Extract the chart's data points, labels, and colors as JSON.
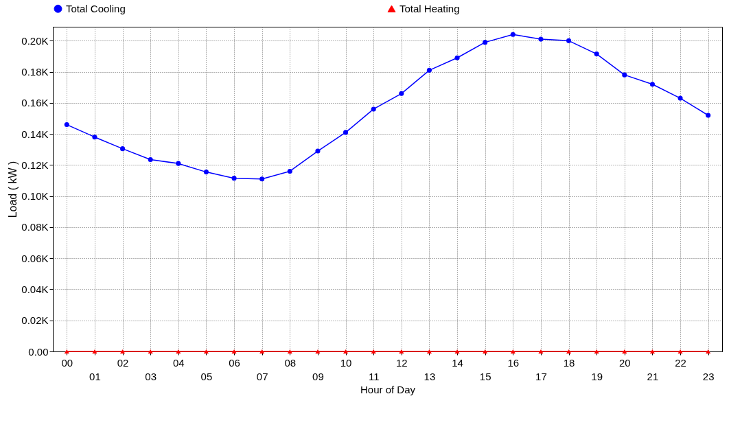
{
  "chart_data": {
    "type": "line",
    "xlabel": "Hour of Day",
    "ylabel": "Load ( kW )",
    "categories": [
      "00",
      "01",
      "02",
      "03",
      "04",
      "05",
      "06",
      "07",
      "08",
      "09",
      "10",
      "11",
      "12",
      "13",
      "14",
      "15",
      "16",
      "17",
      "18",
      "19",
      "20",
      "21",
      "22",
      "23"
    ],
    "series": [
      {
        "name": "Total Cooling",
        "color": "#0000ff",
        "marker": "circle",
        "values": [
          146,
          138,
          130.5,
          123.5,
          121,
          115.5,
          111.5,
          111,
          116,
          129,
          141,
          156,
          166,
          181,
          189,
          199,
          204,
          201,
          200,
          191.5,
          178,
          172,
          163,
          152
        ]
      },
      {
        "name": "Total Heating",
        "color": "#ff0000",
        "marker": "triangle",
        "values": [
          0,
          0,
          0,
          0,
          0,
          0,
          0,
          0,
          0,
          0,
          0,
          0,
          0,
          0,
          0,
          0,
          0,
          0,
          0,
          0,
          0,
          0,
          0,
          0
        ]
      }
    ],
    "ylim": [
      0,
      209
    ],
    "yticks": [
      {
        "value": 0,
        "label": "0.00"
      },
      {
        "value": 20,
        "label": "0.02K"
      },
      {
        "value": 40,
        "label": "0.04K"
      },
      {
        "value": 60,
        "label": "0.06K"
      },
      {
        "value": 80,
        "label": "0.08K"
      },
      {
        "value": 100,
        "label": "0.10K"
      },
      {
        "value": 120,
        "label": "0.12K"
      },
      {
        "value": 140,
        "label": "0.14K"
      },
      {
        "value": 160,
        "label": "0.16K"
      },
      {
        "value": 180,
        "label": "0.18K"
      },
      {
        "value": 200,
        "label": "0.20K"
      }
    ],
    "grid": true,
    "legend": "top",
    "line_style": "solid"
  }
}
